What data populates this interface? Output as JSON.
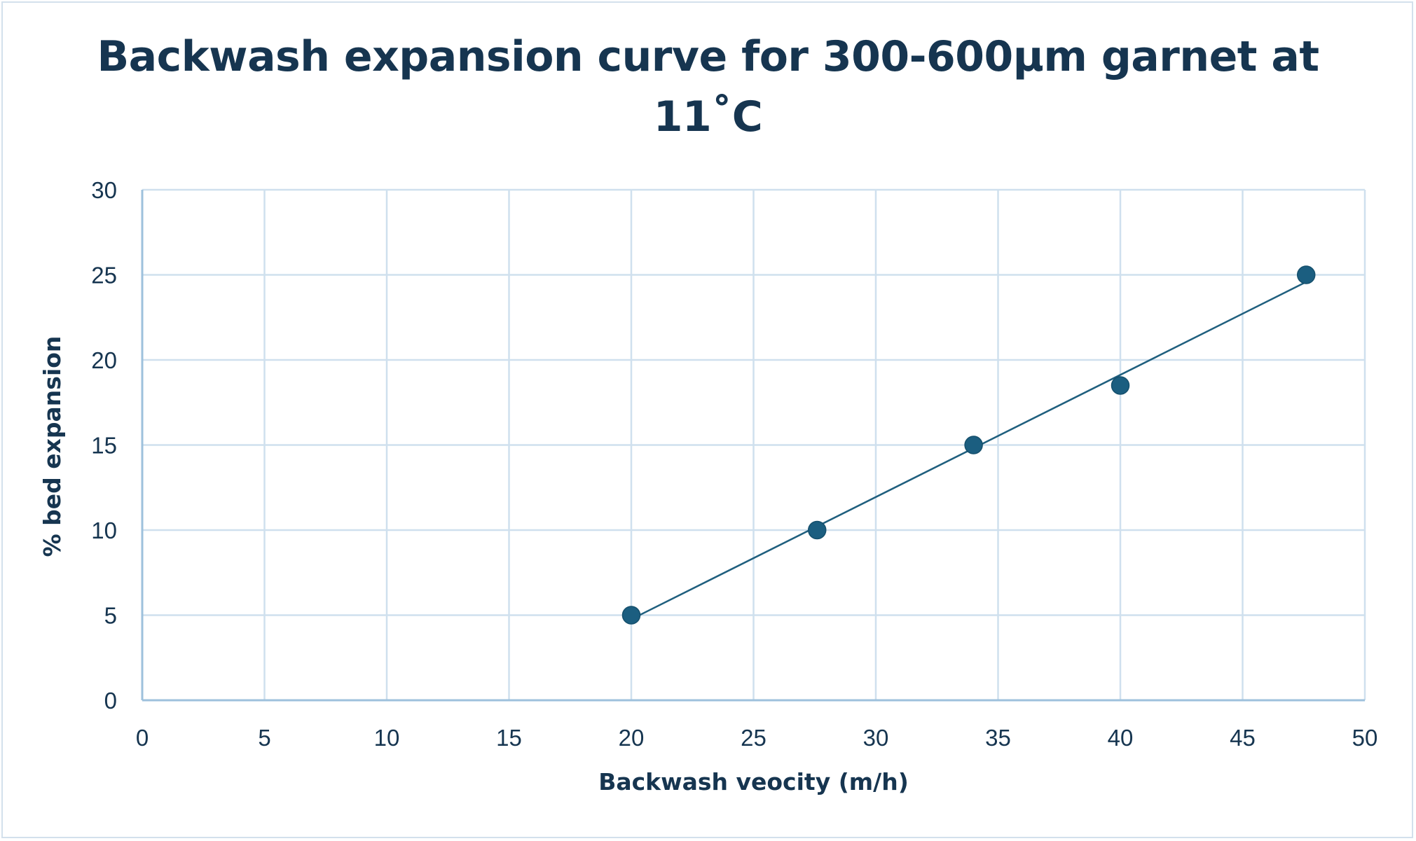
{
  "chart_data": {
    "type": "scatter",
    "title_lines": [
      "Backwash expansion curve for 300-600µm garnet at",
      "11˚C"
    ],
    "xlabel": "Backwash veocity (m/h)",
    "ylabel": "% bed expansion",
    "xlim": [
      0,
      50
    ],
    "ylim": [
      0,
      30
    ],
    "x_ticks": [
      0,
      5,
      10,
      15,
      20,
      25,
      30,
      35,
      40,
      45,
      50
    ],
    "y_ticks": [
      0,
      5,
      10,
      15,
      20,
      25,
      30
    ],
    "grid": true,
    "legend": "none",
    "series": [
      {
        "points": [
          {
            "x": 20,
            "y": 5
          },
          {
            "x": 27.6,
            "y": 10
          },
          {
            "x": 34,
            "y": 15
          },
          {
            "x": 40,
            "y": 18.5
          },
          {
            "x": 47.6,
            "y": 25
          }
        ],
        "trendline": {
          "type": "linear",
          "x_start": 20,
          "x_end": 47.6
        }
      }
    ],
    "colors": {
      "marker": "#1b5e80",
      "trendline": "#1f5f7e",
      "grid": "#cfe0ee",
      "axis": "#9ec1dc",
      "text": "#163550"
    }
  }
}
